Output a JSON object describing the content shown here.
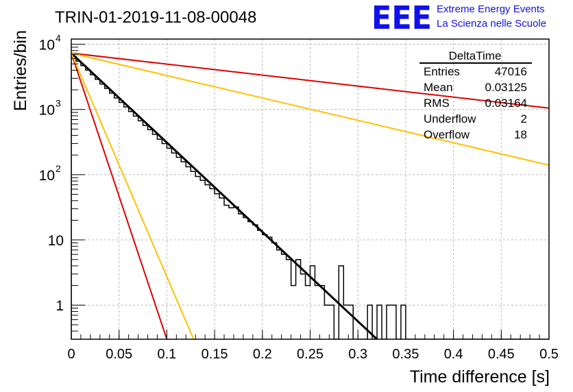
{
  "header": {
    "title": "TRIN-01-2019-11-08-00048",
    "logo_text": "EEE",
    "logo_line1": "Extreme Energy Events",
    "logo_line2": "La Scienza nelle Scuole",
    "logo_color": "#1010ee"
  },
  "stats": {
    "name": "DeltaTime",
    "rows": [
      {
        "label": "Entries",
        "value": "47016"
      },
      {
        "label": "Mean",
        "value": "0.03125"
      },
      {
        "label": "RMS",
        "value": "0.03164"
      },
      {
        "label": "Underflow",
        "value": "2"
      },
      {
        "label": "Overflow",
        "value": "18"
      }
    ]
  },
  "chart_data": {
    "type": "line",
    "title": "TRIN-01-2019-11-08-00048",
    "xlabel": "Time difference [s]",
    "ylabel": "Entries/bin",
    "xlim": [
      0,
      0.5
    ],
    "ylim": [
      0.3,
      12000
    ],
    "yscale": "log",
    "grid": true,
    "legend": "top-right",
    "xticks": [
      "0",
      "0.05",
      "0.1",
      "0.15",
      "0.2",
      "0.25",
      "0.3",
      "0.35",
      "0.4",
      "0.45",
      "0.5"
    ],
    "yticks": [
      {
        "value": 1,
        "base": "1",
        "exp": ""
      },
      {
        "value": 10,
        "base": "10",
        "exp": ""
      },
      {
        "value": 100,
        "base": "10",
        "exp": "2"
      },
      {
        "value": 1000,
        "base": "10",
        "exp": "3"
      },
      {
        "value": 10000,
        "base": "10",
        "exp": "4"
      }
    ],
    "histogram": {
      "bin_width": 0.005,
      "color": "#000000",
      "values": [
        6500,
        5500,
        4700,
        4000,
        3400,
        2900,
        2450,
        2100,
        1780,
        1500,
        1280,
        1090,
        930,
        790,
        670,
        570,
        490,
        415,
        350,
        300,
        255,
        215,
        185,
        158,
        132,
        112,
        94,
        82,
        70,
        61,
        51,
        44,
        34,
        31,
        32,
        25,
        22,
        19,
        17,
        14,
        12,
        11,
        9,
        7,
        6,
        5,
        2,
        5,
        3,
        2,
        4,
        2,
        2,
        1,
        1,
        0,
        4,
        1,
        1,
        0,
        0,
        0,
        1,
        0,
        1,
        0,
        1,
        1,
        0,
        1,
        0,
        0,
        0,
        0,
        0,
        0,
        0,
        0,
        0,
        0,
        0,
        0,
        0,
        0,
        0,
        0,
        0,
        0,
        0,
        0,
        0,
        0,
        0,
        0,
        0,
        0,
        0,
        0,
        0,
        0
      ]
    },
    "series": [
      {
        "color": "#000000",
        "x": [
          0,
          0.32
        ],
        "y": [
          7300,
          0.3
        ]
      },
      {
        "color": "#dd0000",
        "x": [
          0,
          0.1
        ],
        "y": [
          7300,
          0.3
        ]
      },
      {
        "color": "#ffc000",
        "x": [
          0,
          0.128
        ],
        "y": [
          7300,
          0.3
        ]
      },
      {
        "color": "#dd0000",
        "x": [
          0,
          0.5
        ],
        "y": [
          7300,
          1050
        ]
      },
      {
        "color": "#ffc000",
        "x": [
          0,
          0.5
        ],
        "y": [
          7300,
          140
        ]
      }
    ]
  }
}
